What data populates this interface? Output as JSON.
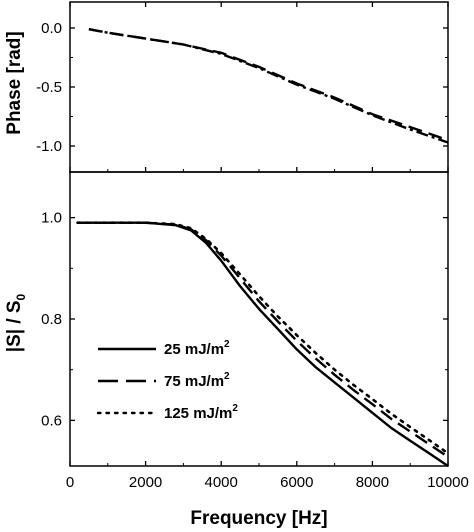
{
  "chart_data": [
    {
      "type": "line",
      "panel": "top",
      "ylabel": "Phase [rad]",
      "xlim": [
        0,
        10000
      ],
      "ylim": [
        -1.22,
        0.22
      ],
      "yticks": [
        0.0,
        -0.5,
        -1.0
      ],
      "ytick_labels": [
        "0.0",
        "-0.5",
        "-1.0"
      ],
      "series": [
        {
          "style": "dash-dot",
          "x": [
            500,
            1000,
            2000,
            3000,
            4000,
            5000,
            6000,
            7000,
            8000,
            9000,
            10000
          ],
          "y": [
            -0.01,
            -0.04,
            -0.09,
            -0.14,
            -0.22,
            -0.34,
            -0.48,
            -0.6,
            -0.74,
            -0.86,
            -0.97
          ]
        },
        {
          "style": "dash",
          "x": [
            500,
            1000,
            2000,
            3000,
            4000,
            5000,
            6000,
            7000,
            8000,
            9000,
            10000
          ],
          "y": [
            -0.01,
            -0.04,
            -0.09,
            -0.14,
            -0.21,
            -0.33,
            -0.47,
            -0.59,
            -0.73,
            -0.84,
            -0.95
          ]
        }
      ]
    },
    {
      "type": "line",
      "panel": "bottom",
      "xlabel": "Frequency [Hz]",
      "ylabel_main": "|S| / S",
      "ylabel_sub": "0",
      "xlim": [
        0,
        10000
      ],
      "ylim": [
        0.51,
        1.09
      ],
      "xticks": [
        0,
        2000,
        4000,
        6000,
        8000,
        10000
      ],
      "xtick_labels": [
        "0",
        "2000",
        "4000",
        "6000",
        "8000",
        "10000"
      ],
      "yticks": [
        1.0,
        0.8,
        0.6
      ],
      "ytick_labels": [
        "1.0",
        "0.8",
        "0.6"
      ],
      "series": [
        {
          "name": "25 mJ/m",
          "sup": "2",
          "style": "solid",
          "x": [
            200,
            1000,
            2000,
            2800,
            3200,
            3600,
            4000,
            4500,
            5000,
            5500,
            6000,
            6500,
            7000,
            7500,
            8000,
            8500,
            9000,
            9500,
            10000
          ],
          "y": [
            0.99,
            0.99,
            0.99,
            0.985,
            0.975,
            0.95,
            0.915,
            0.865,
            0.82,
            0.78,
            0.74,
            0.705,
            0.675,
            0.645,
            0.615,
            0.585,
            0.56,
            0.535,
            0.51
          ]
        },
        {
          "name": "75 mJ/m",
          "sup": "2",
          "style": "dash",
          "x": [
            200,
            1000,
            2000,
            2800,
            3200,
            3600,
            4000,
            4500,
            5000,
            5500,
            6000,
            6500,
            7000,
            7500,
            8000,
            8500,
            9000,
            9500,
            10000
          ],
          "y": [
            0.99,
            0.99,
            0.99,
            0.986,
            0.977,
            0.955,
            0.925,
            0.88,
            0.835,
            0.795,
            0.757,
            0.722,
            0.69,
            0.66,
            0.632,
            0.603,
            0.578,
            0.553,
            0.528
          ]
        },
        {
          "name": "125 mJ/m",
          "sup": "2",
          "style": "dot",
          "x": [
            200,
            1000,
            2000,
            2800,
            3200,
            3600,
            4000,
            4500,
            5000,
            5500,
            6000,
            6500,
            7000,
            7500,
            8000,
            8500,
            9000,
            9500,
            10000
          ],
          "y": [
            0.99,
            0.99,
            0.99,
            0.987,
            0.979,
            0.958,
            0.93,
            0.888,
            0.845,
            0.805,
            0.768,
            0.733,
            0.7,
            0.67,
            0.642,
            0.613,
            0.587,
            0.561,
            0.535
          ]
        }
      ],
      "legend": "lower-left"
    }
  ]
}
